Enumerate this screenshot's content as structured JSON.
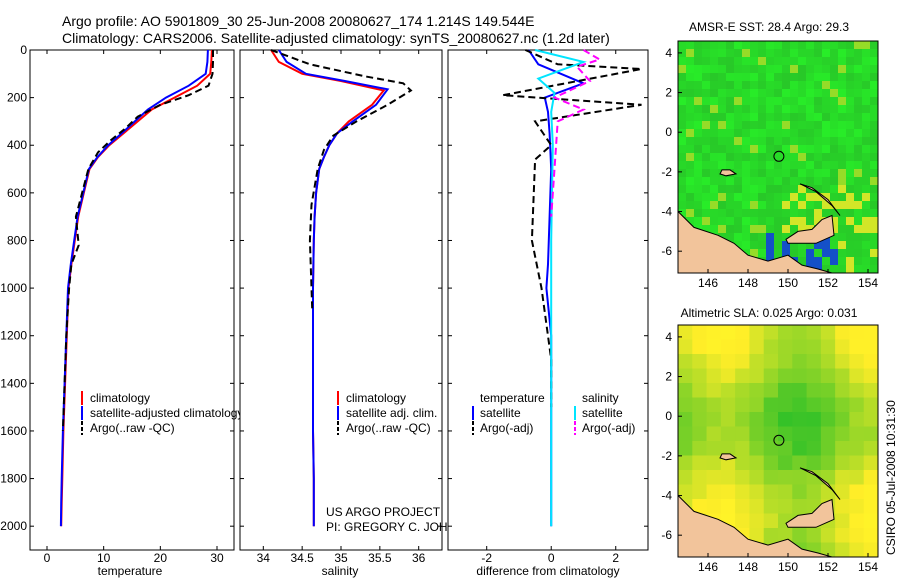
{
  "header": {
    "line1": "Argo profile: AO 5901809_30 25-Jun-2008 20080627_174 1.214S 149.544E",
    "line2": "Climatology: CARS2006. Satellite-adjusted climatology: synTS_20080627.nc (1.2d later)"
  },
  "colors": {
    "climatology": "#ff0000",
    "satellite": "#0000ff",
    "argo": "#000000",
    "sal_satellite": "#00e5ff",
    "sal_argo": "#ff00ff",
    "land": "#f2c49b"
  },
  "chart_data": [
    {
      "type": "line",
      "id": "temperature",
      "xlabel": "temperature",
      "ylabel": "",
      "xlim": [
        -3,
        33
      ],
      "ylim": [
        2100,
        0
      ],
      "xticks": [
        0,
        10,
        20,
        30
      ],
      "yticks": [
        0,
        200,
        400,
        600,
        800,
        1000,
        1200,
        1400,
        1600,
        1800,
        2000
      ],
      "series": [
        {
          "name": "climatology",
          "color": "#ff0000",
          "dash": false,
          "x": [
            29.1,
            29.0,
            28.8,
            26.5,
            22.5,
            18.5,
            16.0,
            13.5,
            11.0,
            9.0,
            7.5,
            6.5,
            5.5,
            4.9,
            4.3,
            3.8,
            3.5,
            3.2,
            2.9,
            2.7,
            2.6,
            2.5
          ],
          "y": [
            0,
            50,
            100,
            150,
            200,
            250,
            300,
            350,
            400,
            450,
            500,
            600,
            700,
            800,
            900,
            1000,
            1200,
            1400,
            1600,
            1800,
            1900,
            2000
          ]
        },
        {
          "name": "satellite-adjusted climatology",
          "color": "#0000ff",
          "dash": false,
          "x": [
            28.4,
            28.3,
            28.0,
            25.0,
            21.0,
            17.8,
            15.5,
            13.2,
            10.8,
            8.9,
            7.4,
            6.4,
            5.4,
            4.8,
            4.2,
            3.7,
            3.4,
            3.1,
            2.8,
            2.6,
            2.5,
            2.45
          ],
          "y": [
            0,
            50,
            100,
            150,
            200,
            250,
            300,
            350,
            400,
            450,
            500,
            600,
            700,
            800,
            900,
            1000,
            1200,
            1400,
            1600,
            1800,
            1900,
            2000
          ]
        },
        {
          "name": "Argo(..raw -QC)",
          "color": "#000000",
          "dash": true,
          "x": [
            29.3,
            29.3,
            29.2,
            28.5,
            25.0,
            20.0,
            16.0,
            13.8,
            11.2,
            9.0,
            7.3,
            6.2,
            5.1,
            5.6,
            4.3,
            3.9,
            3.4,
            3.1,
            2.8
          ],
          "y": [
            0,
            50,
            100,
            150,
            190,
            230,
            280,
            330,
            380,
            430,
            500,
            600,
            700,
            820,
            900,
            1000,
            1200,
            1400,
            1600
          ]
        }
      ],
      "legend": [
        "climatology",
        "satellite-adjusted climatology",
        "Argo(..raw -QC)"
      ]
    },
    {
      "type": "line",
      "id": "salinity",
      "xlabel": "salinity",
      "xlim": [
        33.7,
        36.3
      ],
      "ylim": [
        2100,
        0
      ],
      "xticks": [
        34,
        34.5,
        35,
        35.5,
        36
      ],
      "series": [
        {
          "name": "climatology",
          "color": "#ff0000",
          "dash": false,
          "x": [
            34.1,
            34.2,
            34.5,
            35.0,
            35.55,
            35.4,
            35.1,
            34.95,
            34.85,
            34.78,
            34.72,
            34.68,
            34.66,
            34.65,
            34.64,
            34.64,
            34.64,
            34.65,
            34.65
          ],
          "y": [
            0,
            50,
            100,
            130,
            170,
            230,
            300,
            350,
            400,
            450,
            500,
            600,
            700,
            800,
            1000,
            1200,
            1600,
            1800,
            2000
          ]
        },
        {
          "name": "satellite adj. clim.",
          "color": "#0000ff",
          "dash": false,
          "x": [
            34.2,
            34.3,
            34.55,
            35.05,
            35.6,
            35.45,
            35.15,
            34.95,
            34.85,
            34.78,
            34.72,
            34.68,
            34.66,
            34.65,
            34.64,
            34.64,
            34.64,
            34.65,
            34.65
          ],
          "y": [
            0,
            50,
            100,
            130,
            165,
            230,
            300,
            350,
            400,
            450,
            500,
            600,
            700,
            800,
            1000,
            1200,
            1600,
            1800,
            2000
          ]
        },
        {
          "name": "Argo(..raw -QC)",
          "color": "#000000",
          "dash": true,
          "x": [
            34.1,
            34.6,
            35.3,
            35.8,
            35.9,
            35.6,
            35.2,
            34.9,
            34.78,
            34.7,
            34.62,
            34.6,
            34.62,
            34.63
          ],
          "y": [
            0,
            60,
            110,
            140,
            170,
            230,
            300,
            360,
            420,
            500,
            650,
            800,
            1000,
            1100
          ]
        }
      ],
      "legend": [
        "climatology",
        "satellite adj. clim.",
        "Argo(..raw -QC)"
      ],
      "annotation": [
        "US ARGO PROJECT",
        "PI: GREGORY C. JOHNSON"
      ]
    },
    {
      "type": "line",
      "id": "difference",
      "xlabel": "difference from climatology",
      "xlim": [
        -3.2,
        3
      ],
      "ylim": [
        2100,
        0
      ],
      "xticks": [
        -2,
        0,
        2
      ],
      "series": [
        {
          "name": "temperature satellite",
          "color": "#0000ff",
          "dash": false,
          "x": [
            -0.7,
            -0.4,
            1.0,
            -0.2,
            -0.1,
            -0.05,
            0,
            -0.05,
            -0.1,
            -0.15,
            0,
            0,
            0
          ],
          "y": [
            0,
            60,
            140,
            200,
            260,
            350,
            500,
            700,
            900,
            1000,
            1200,
            1600,
            2000
          ]
        },
        {
          "name": "temperature Argo(-adj)",
          "color": "#000000",
          "dash": true,
          "x": [
            -0.8,
            0.2,
            2.8,
            -1.5,
            2.8,
            -0.5,
            0.0,
            -0.5,
            -0.6,
            -0.3,
            0,
            0
          ],
          "y": [
            0,
            60,
            80,
            190,
            230,
            300,
            400,
            460,
            800,
            1000,
            1300,
            1500
          ]
        },
        {
          "name": "salinity satellite",
          "color": "#00e5ff",
          "dash": false,
          "x": [
            -0.5,
            1.0,
            -0.4,
            0.1,
            0,
            0.05,
            0,
            0,
            0
          ],
          "y": [
            0,
            50,
            120,
            180,
            260,
            400,
            800,
            1400,
            2000
          ]
        },
        {
          "name": "salinity Argo(-adj)",
          "color": "#ff00ff",
          "dash": true,
          "x": [
            1.0,
            1.5,
            0.8,
            1.2,
            0.1,
            1.0,
            0.2,
            0.1,
            0.0
          ],
          "y": [
            0,
            40,
            70,
            130,
            200,
            250,
            300,
            500,
            700
          ]
        }
      ],
      "legend_headers": [
        "temperature",
        "salinity"
      ],
      "legend": [
        "satellite",
        "Argo(-adj)",
        "satellite",
        "Argo(-adj)"
      ]
    },
    {
      "type": "heatmap",
      "id": "sst_map",
      "title": "AMSR-E SST: 28.4 Argo: 29.3",
      "xlim": [
        144.5,
        154.5
      ],
      "ylim": [
        -7.1,
        4.6
      ],
      "xticks": [
        146,
        148,
        150,
        152,
        154
      ],
      "yticks": [
        -6,
        -4,
        -2,
        0,
        2,
        4
      ],
      "profile_location": [
        149.544,
        -1.214
      ]
    },
    {
      "type": "heatmap",
      "id": "sla_map",
      "title": "Altimetric SLA: 0.025 Argo: 0.031",
      "xlim": [
        144.5,
        154.5
      ],
      "ylim": [
        -7.1,
        4.6
      ],
      "xticks": [
        146,
        148,
        150,
        152,
        154
      ],
      "yticks": [
        -6,
        -4,
        -2,
        0,
        2,
        4
      ],
      "profile_location": [
        149.544,
        -1.214
      ]
    }
  ],
  "footer": {
    "credit": "CSIRO 05-Jul-2008 10:31:30"
  }
}
